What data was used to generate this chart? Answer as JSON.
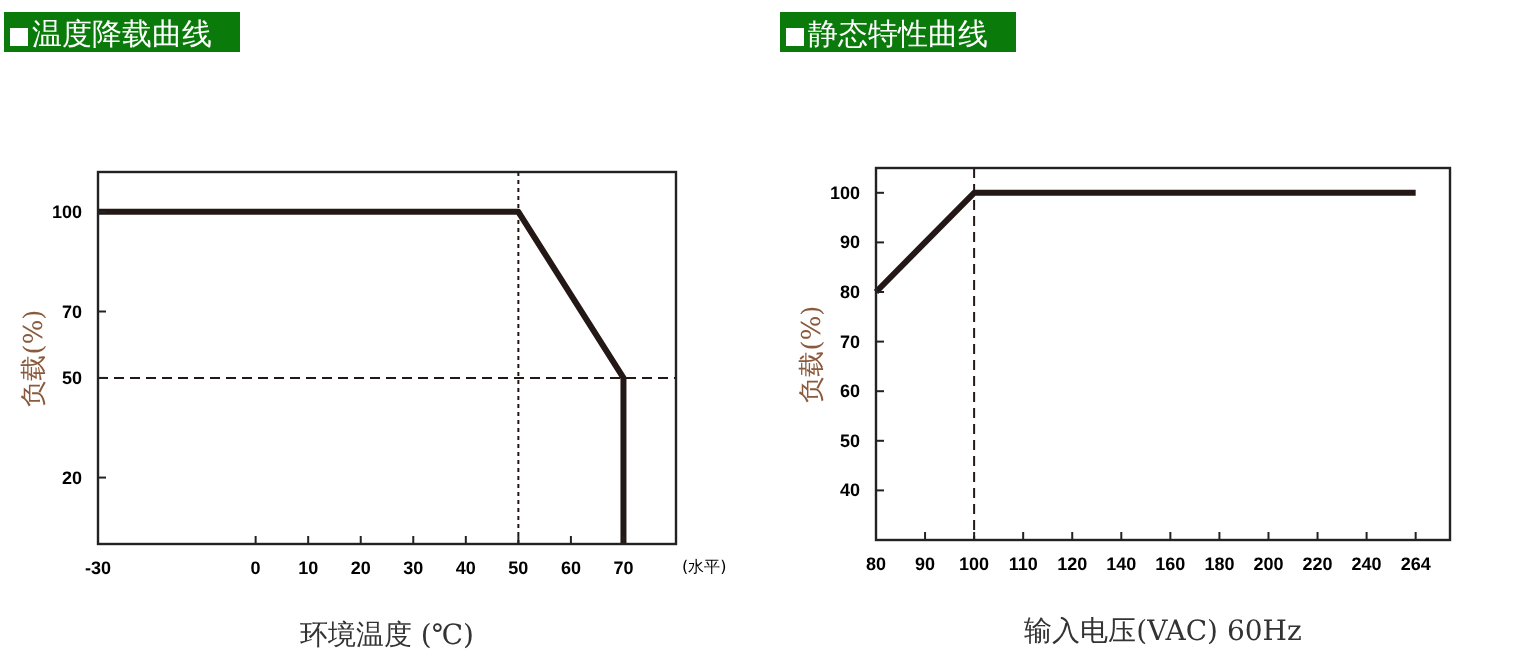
{
  "chart_data": [
    {
      "type": "line",
      "title": "温度降载曲线",
      "xlabel": "环境温度 (℃)",
      "ylabel": "负载(%)",
      "annotations": [
        "(水平)"
      ],
      "x": [
        -30,
        50,
        70,
        70
      ],
      "series": [
        {
          "color": "#231815",
          "values": [
            100,
            100,
            50,
            0
          ]
        }
      ],
      "xlim": [
        -30,
        80
      ],
      "xticks": [
        -30,
        0,
        10,
        20,
        30,
        40,
        50,
        60,
        70
      ],
      "ylim": [
        0,
        112
      ],
      "yticks": [
        20,
        50,
        70,
        100
      ],
      "ref_lines": [
        {
          "axis": "x",
          "value": 50,
          "line_style": "dotted",
          "color": "#231815"
        },
        {
          "axis": "y",
          "value": 50,
          "line_style": "dashed",
          "color": "#231815"
        }
      ]
    },
    {
      "type": "line",
      "title": "静态特性曲线",
      "xlabel": "输入电压(VAC) 60Hz",
      "ylabel": "负载(%)",
      "categories": [
        "80",
        "90",
        "100",
        "110",
        "120",
        "140",
        "160",
        "180",
        "200",
        "220",
        "240",
        "264"
      ],
      "series": [
        {
          "color": "#231815",
          "values": [
            80,
            90,
            100,
            100,
            100,
            100,
            100,
            100,
            100,
            100,
            100,
            100
          ]
        }
      ],
      "ylim": [
        30,
        105
      ],
      "yticks": [
        40,
        50,
        60,
        70,
        80,
        90,
        100
      ],
      "ref_lines": [
        {
          "axis": "x",
          "value": "100",
          "line_style": "dashed",
          "color": "#231815"
        }
      ]
    }
  ]
}
